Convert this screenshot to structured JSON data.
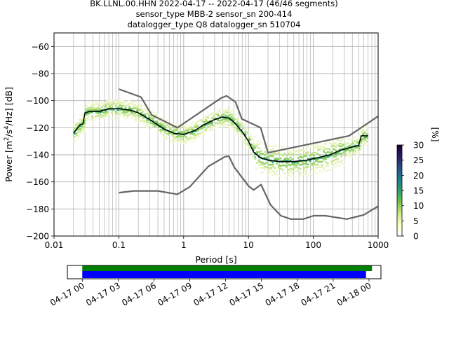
{
  "title_lines": [
    "BK.LLNL.00.HHN   2022-04-17 -- 2022-04-17  (46/46 segments)",
    "sensor_type MBB-2 sensor_sn 200-414",
    "datalogger_type Q8 datalogger_sn 510704"
  ],
  "chart_data": [
    {
      "type": "line",
      "title": "",
      "xlabel": "Period [s]",
      "ylabel": "Power [m²/s⁴/Hz] [dB]",
      "ylabel_parts": {
        "main": "Power [m",
        "s1": "2",
        "mid": "/s",
        "s2": "4",
        "tail": "/Hz] [dB]"
      },
      "xscale": "log",
      "xlim": [
        0.01,
        1000
      ],
      "ylim": [
        -200,
        -50
      ],
      "x_ticks": [
        0.01,
        0.1,
        1,
        10,
        100,
        1000
      ],
      "x_tick_labels": [
        "0.01",
        "0.1",
        "1",
        "10",
        "100",
        "1000"
      ],
      "y_ticks": [
        -200,
        -180,
        -160,
        -140,
        -120,
        -100,
        -80,
        -60
      ],
      "y_tick_labels": [
        "−200",
        "−180",
        "−160",
        "−140",
        "−120",
        "−100",
        "−80",
        "−60"
      ],
      "grid": true,
      "colors": {
        "mode": "#000000",
        "noise_models": "#666666"
      },
      "series": [
        {
          "role": "mode",
          "points": [
            [
              0.02,
              -124
            ],
            [
              0.025,
              -118
            ],
            [
              0.028,
              -117
            ],
            [
              0.03,
              -109
            ],
            [
              0.035,
              -108
            ],
            [
              0.05,
              -108
            ],
            [
              0.07,
              -106
            ],
            [
              0.1,
              -106
            ],
            [
              0.15,
              -107
            ],
            [
              0.2,
              -109
            ],
            [
              0.3,
              -114
            ],
            [
              0.4,
              -118
            ],
            [
              0.5,
              -121
            ],
            [
              0.7,
              -124
            ],
            [
              1,
              -125
            ],
            [
              1.5,
              -122
            ],
            [
              2,
              -118
            ],
            [
              3,
              -114
            ],
            [
              4,
              -112
            ],
            [
              5,
              -113
            ],
            [
              6,
              -116
            ],
            [
              8,
              -123
            ],
            [
              10,
              -130
            ],
            [
              12,
              -138
            ],
            [
              15,
              -142
            ],
            [
              20,
              -144
            ],
            [
              30,
              -145
            ],
            [
              50,
              -145
            ],
            [
              80,
              -144
            ],
            [
              120,
              -142
            ],
            [
              180,
              -140
            ],
            [
              250,
              -137
            ],
            [
              350,
              -135
            ],
            [
              500,
              -133
            ],
            [
              550,
              -126
            ],
            [
              700,
              -126
            ]
          ]
        },
        {
          "role": "high-noise-model",
          "points": [
            [
              0.1,
              -91.5
            ],
            [
              0.22,
              -97.4
            ],
            [
              0.32,
              -110.5
            ],
            [
              0.8,
              -120
            ],
            [
              3.8,
              -98
            ],
            [
              4.6,
              -96.5
            ],
            [
              6.3,
              -101
            ],
            [
              7.9,
              -113.5
            ],
            [
              15.4,
              -120
            ],
            [
              20,
              -138.5
            ],
            [
              354.8,
              -126
            ],
            [
              1000,
              -111.5
            ]
          ]
        },
        {
          "role": "low-noise-model",
          "points": [
            [
              0.1,
              -168
            ],
            [
              0.17,
              -166.7
            ],
            [
              0.4,
              -166.7
            ],
            [
              0.8,
              -169.2
            ],
            [
              1.24,
              -163.7
            ],
            [
              2.4,
              -148.6
            ],
            [
              4.3,
              -141.5
            ],
            [
              5,
              -141
            ],
            [
              6,
              -149
            ],
            [
              10,
              -163
            ],
            [
              12,
              -166
            ],
            [
              15.6,
              -162
            ],
            [
              21.9,
              -177
            ],
            [
              31.6,
              -185
            ],
            [
              45,
              -187.5
            ],
            [
              70,
              -187.5
            ],
            [
              101,
              -185
            ],
            [
              154,
              -185
            ],
            [
              328,
              -187.5
            ],
            [
              600,
              -184.4
            ],
            [
              1000,
              -178
            ]
          ]
        }
      ],
      "pdf_band": {
        "colormap": "pqlx",
        "points": [
          [
            0.02,
            -124
          ],
          [
            0.025,
            -118
          ],
          [
            0.028,
            -117
          ],
          [
            0.03,
            -109
          ],
          [
            0.035,
            -108
          ],
          [
            0.05,
            -108
          ],
          [
            0.07,
            -106
          ],
          [
            0.1,
            -106
          ],
          [
            0.15,
            -107
          ],
          [
            0.2,
            -109
          ],
          [
            0.3,
            -114
          ],
          [
            0.4,
            -118
          ],
          [
            0.5,
            -121
          ],
          [
            0.7,
            -124
          ],
          [
            1,
            -125
          ],
          [
            1.5,
            -122
          ],
          [
            2,
            -118
          ],
          [
            3,
            -114
          ],
          [
            4,
            -112
          ],
          [
            5,
            -113
          ],
          [
            6,
            -116
          ],
          [
            8,
            -123
          ],
          [
            10,
            -130
          ],
          [
            12,
            -138
          ],
          [
            15,
            -142
          ],
          [
            20,
            -144
          ],
          [
            30,
            -145
          ],
          [
            50,
            -145
          ],
          [
            80,
            -144
          ],
          [
            120,
            -142
          ],
          [
            180,
            -140
          ],
          [
            250,
            -137
          ],
          [
            350,
            -135
          ],
          [
            500,
            -133
          ],
          [
            550,
            -126
          ],
          [
            700,
            -126
          ]
        ]
      }
    },
    {
      "type": "colorbar",
      "label": "[%]",
      "range": [
        0,
        30
      ],
      "ticks": [
        0,
        5,
        10,
        15,
        20,
        25,
        30
      ],
      "tick_labels": [
        "0",
        "5",
        "10",
        "15",
        "20",
        "25",
        "30"
      ],
      "colors": [
        "#ffffff",
        "#ffffc0",
        "#c7e97f",
        "#6fc24a",
        "#2aa06e",
        "#1b7d8a",
        "#2a4f8e",
        "#2e1c63",
        "#1a0033"
      ]
    },
    {
      "type": "bar",
      "title": "",
      "xaxis": "time",
      "xlim": [
        "04-16 22:45",
        "04-18 01:00"
      ],
      "tick_labels": [
        "04-17 00",
        "04-17 03",
        "04-17 06",
        "04-17 09",
        "04-17 12",
        "04-17 15",
        "04-17 18",
        "04-17 21",
        "04-18 00"
      ],
      "series": [
        {
          "role": "data-coverage",
          "start": "04-17 00:00",
          "end": "04-18 00:15",
          "color": "#008000"
        },
        {
          "role": "used-segments",
          "start": "04-17 00:00",
          "end": "04-17 23:45",
          "color": "#0000ff"
        }
      ]
    }
  ]
}
